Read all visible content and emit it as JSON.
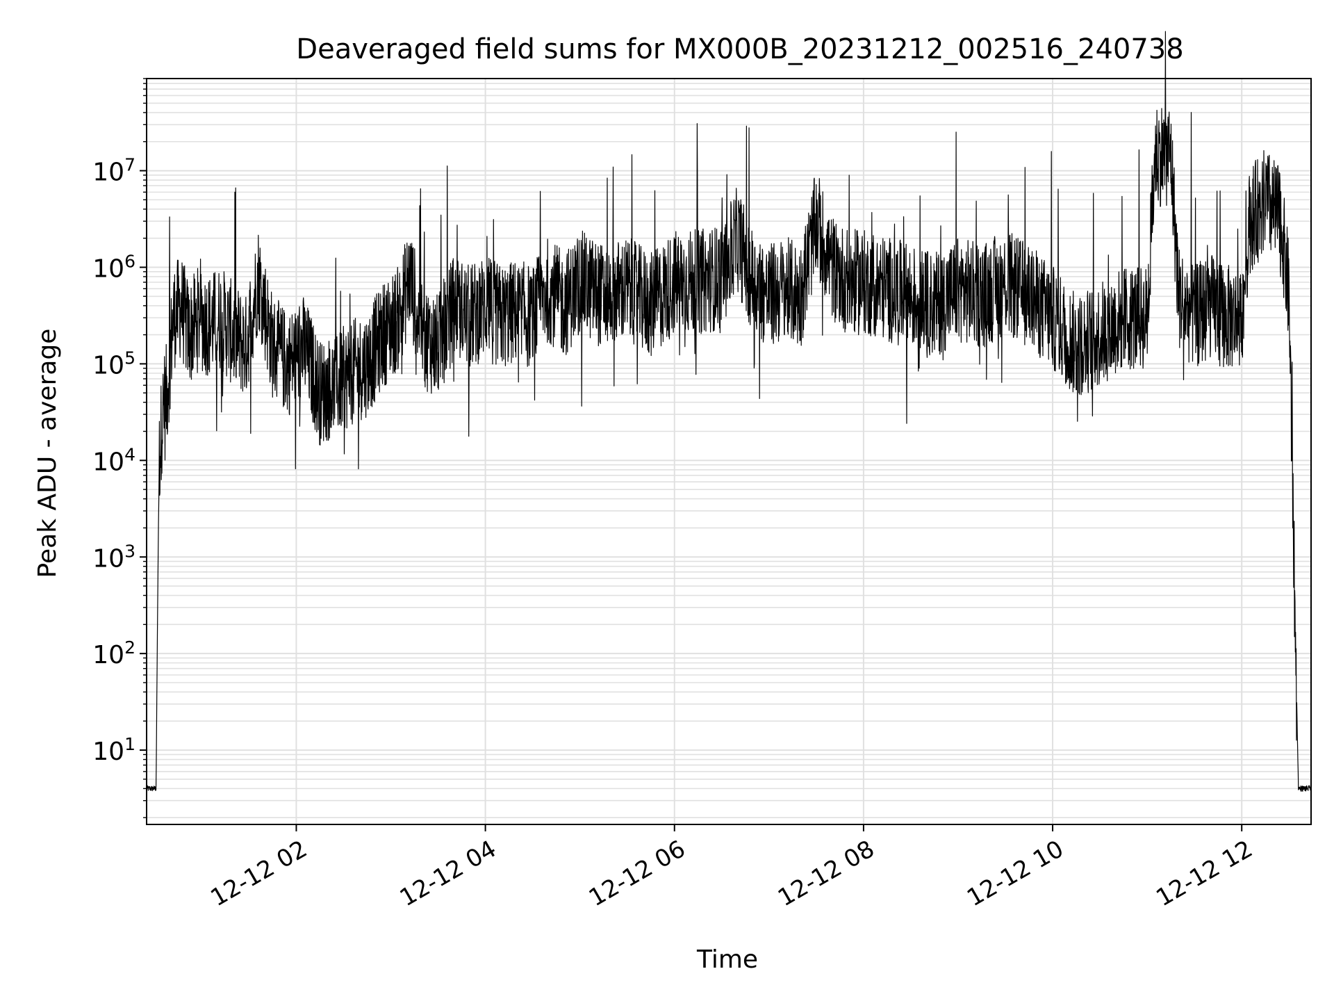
{
  "chart_data": {
    "type": "line",
    "title": "Deaveraged field sums for MX000B_20231212_002516_240738",
    "xlabel": "Time",
    "ylabel": "Peak ADU - average",
    "y_scale": "log",
    "grid": true,
    "legend": "none",
    "line_color": "#000000",
    "grid_color": "#e0e0e0",
    "xlim": [
      "2023-12-12 00:25",
      "2023-12-12 12:44"
    ],
    "ylim": [
      1.7,
      90000000
    ],
    "x_ticks": [
      {
        "t": "2023-12-12 02:00",
        "label": "12-12 02"
      },
      {
        "t": "2023-12-12 04:00",
        "label": "12-12 04"
      },
      {
        "t": "2023-12-12 06:00",
        "label": "12-12 06"
      },
      {
        "t": "2023-12-12 08:00",
        "label": "12-12 08"
      },
      {
        "t": "2023-12-12 10:00",
        "label": "12-12 10"
      },
      {
        "t": "2023-12-12 12:00",
        "label": "12-12 12"
      }
    ],
    "y_ticks": [
      {
        "v": 10,
        "base": "10",
        "exp": "1"
      },
      {
        "v": 100,
        "base": "10",
        "exp": "2"
      },
      {
        "v": 1000,
        "base": "10",
        "exp": "3"
      },
      {
        "v": 10000,
        "base": "10",
        "exp": "4"
      },
      {
        "v": 100000,
        "base": "10",
        "exp": "5"
      },
      {
        "v": 1000000,
        "base": "10",
        "exp": "6"
      },
      {
        "v": 10000000,
        "base": "10",
        "exp": "7"
      }
    ],
    "series": [
      {
        "x": [
          "2023-12-12 00:25",
          "2023-12-12 00:31",
          "2023-12-12 00:32",
          "2023-12-12 00:33",
          "2023-12-12 00:35",
          "2023-12-12 00:38",
          "2023-12-12 00:42",
          "2023-12-12 00:47",
          "2023-12-12 00:52",
          "2023-12-12 00:58",
          "2023-12-12 01:05",
          "2023-12-12 01:12",
          "2023-12-12 01:20",
          "2023-12-12 01:28",
          "2023-12-12 01:36",
          "2023-12-12 01:45",
          "2023-12-12 01:55",
          "2023-12-12 02:05",
          "2023-12-12 02:15",
          "2023-12-12 02:25",
          "2023-12-12 02:35",
          "2023-12-12 02:45",
          "2023-12-12 02:55",
          "2023-12-12 03:05",
          "2023-12-12 03:12",
          "2023-12-12 03:20",
          "2023-12-12 03:30",
          "2023-12-12 03:40",
          "2023-12-12 03:50",
          "2023-12-12 04:00",
          "2023-12-12 04:10",
          "2023-12-12 04:20",
          "2023-12-12 04:30",
          "2023-12-12 04:40",
          "2023-12-12 04:50",
          "2023-12-12 05:00",
          "2023-12-12 05:15",
          "2023-12-12 05:30",
          "2023-12-12 05:45",
          "2023-12-12 06:00",
          "2023-12-12 06:15",
          "2023-12-12 06:30",
          "2023-12-12 06:40",
          "2023-12-12 06:50",
          "2023-12-12 07:00",
          "2023-12-12 07:10",
          "2023-12-12 07:20",
          "2023-12-12 07:30",
          "2023-12-12 07:40",
          "2023-12-12 07:50",
          "2023-12-12 08:00",
          "2023-12-12 08:15",
          "2023-12-12 08:30",
          "2023-12-12 08:45",
          "2023-12-12 09:00",
          "2023-12-12 09:15",
          "2023-12-12 09:30",
          "2023-12-12 09:45",
          "2023-12-12 10:00",
          "2023-12-12 10:15",
          "2023-12-12 10:30",
          "2023-12-12 10:45",
          "2023-12-12 11:00",
          "2023-12-12 11:05",
          "2023-12-12 11:15",
          "2023-12-12 11:20",
          "2023-12-12 11:30",
          "2023-12-12 11:40",
          "2023-12-12 11:50",
          "2023-12-12 12:00",
          "2023-12-12 12:05",
          "2023-12-12 12:15",
          "2023-12-12 12:25",
          "2023-12-12 12:30",
          "2023-12-12 12:32",
          "2023-12-12 12:34",
          "2023-12-12 12:36",
          "2023-12-12 12:44"
        ],
        "values": [
          4,
          4,
          300,
          10000,
          30000,
          50000,
          300000,
          400000,
          200000,
          300000,
          250000,
          300000,
          200000,
          150000,
          800000,
          150000,
          100000,
          150000,
          50000,
          60000,
          80000,
          100000,
          200000,
          300000,
          800000,
          200000,
          150000,
          400000,
          300000,
          400000,
          300000,
          350000,
          300000,
          600000,
          400000,
          700000,
          500000,
          600000,
          400000,
          700000,
          700000,
          800000,
          2000000,
          700000,
          500000,
          600000,
          500000,
          3000000,
          1000000,
          700000,
          700000,
          600000,
          500000,
          400000,
          600000,
          500000,
          700000,
          500000,
          300000,
          150000,
          200000,
          300000,
          300000,
          15000000,
          15000000,
          500000,
          300000,
          400000,
          300000,
          300000,
          3000000,
          5000000,
          3000000,
          500000,
          10000,
          150,
          4,
          4
        ]
      }
    ]
  }
}
